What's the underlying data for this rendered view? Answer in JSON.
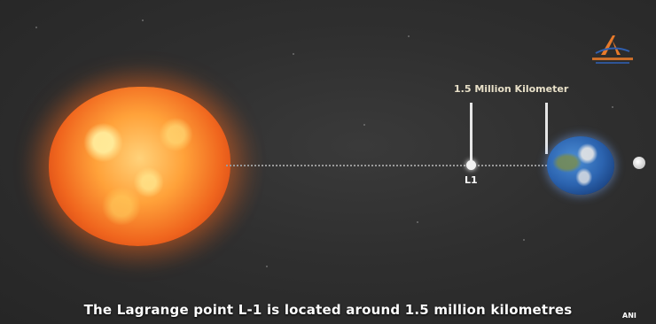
{
  "distance_label": "1.5 Million Kilometer",
  "l1_label": "L1",
  "caption": "The Lagrange point L-1 is located around 1.5 million kilometres",
  "watermark": "ANI",
  "colors": {
    "background": "#2d2d2d",
    "sun": "#f0661e",
    "earth": "#2c64b0",
    "line": "#e6e6e6",
    "logo": "#e87a2a"
  },
  "icons": {
    "logo": "isro-logo-icon"
  }
}
